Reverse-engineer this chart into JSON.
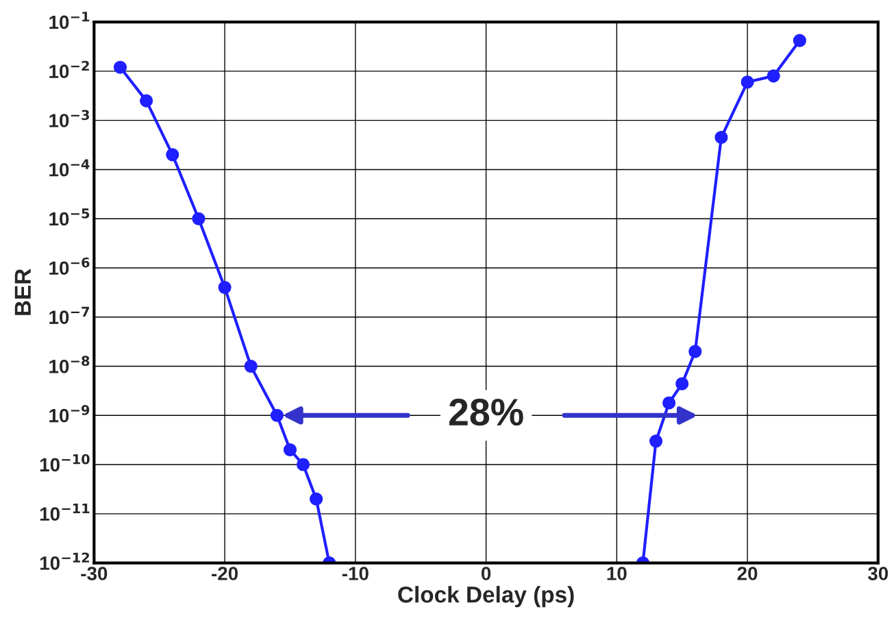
{
  "chart_data": {
    "type": "line",
    "xlabel": "Clock Delay (ps)",
    "ylabel": "BER",
    "series": [
      {
        "color": "#1f1fff",
        "x": [
          -28,
          -26,
          -24,
          -22,
          -20,
          -18,
          -16,
          -15,
          -14,
          -13,
          -12
        ],
        "values": [
          0.012,
          0.0025,
          0.0002,
          1e-05,
          4e-07,
          1e-08,
          1e-09,
          2e-10,
          1e-10,
          2e-11,
          1e-12
        ]
      },
      {
        "color": "#1f1fff",
        "x": [
          12,
          13,
          14,
          15,
          16,
          18,
          20,
          22,
          24
        ],
        "values": [
          1e-12,
          3e-10,
          1.8e-09,
          4.4e-09,
          2e-08,
          0.00045,
          0.006,
          0.008,
          0.042
        ]
      }
    ],
    "log": "y",
    "xlim": [
      -30,
      30
    ],
    "xticks": [
      -30,
      -20,
      -10,
      0,
      10,
      20,
      30
    ],
    "ylim": [
      1e-12,
      0.1
    ],
    "yticks": [
      {
        "value": 1e-12,
        "label": "10$^{−12}$"
      },
      {
        "value": 1e-11,
        "label": "10$^{−11}$"
      },
      {
        "value": 1e-10,
        "label": "10$^{−10}$"
      },
      {
        "value": 1e-09,
        "label": "10$^{−9}$"
      },
      {
        "value": 1e-08,
        "label": "10$^{−8}$"
      },
      {
        "value": 1e-07,
        "label": "10$^{−7}$"
      },
      {
        "value": 1e-06,
        "label": "10$^{−6}$"
      },
      {
        "value": 1e-05,
        "label": "10$^{−5}$"
      },
      {
        "value": 0.0001,
        "label": "10$^{−4}$"
      },
      {
        "value": 0.001,
        "label": "10$^{−3}$"
      },
      {
        "value": 0.01,
        "label": "10$^{−2}$"
      },
      {
        "value": 0.1,
        "label": "10$^{−1}$"
      }
    ],
    "grid": true,
    "marker": "circle",
    "line_style": "solid",
    "annotations": [
      "28%"
    ]
  }
}
